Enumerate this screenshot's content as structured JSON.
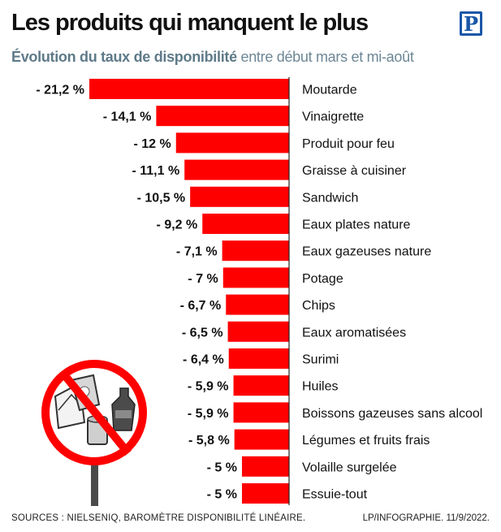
{
  "header": {
    "title": "Les produits qui manquent le plus",
    "subtitle_bold": "Évolution du taux de disponibilité",
    "subtitle_rest": " entre début mars et mi-août",
    "logo_letter": "P"
  },
  "footer": {
    "sources": "SOURCES : NIELSENIQ, BAROMÈTRE DISPONIBILITÉ LINÉAIRE.",
    "credit": "LP/INFOGRAPHIE.  11/9/2022."
  },
  "colors": {
    "bar": "#ff0000",
    "subtitle": "#6d8796",
    "logo": "#1a56a8"
  },
  "icons": [
    "prohibition-sign-icon",
    "bag-icon",
    "can-icon",
    "bottle-icon",
    "tissue-icon"
  ],
  "chart_data": {
    "type": "bar",
    "orientation": "horizontal",
    "title": "Les produits qui manquent le plus",
    "subtitle": "Évolution du taux de disponibilité entre début mars et mi-août",
    "unit": "%",
    "categories": [
      "Moutarde",
      "Vinaigrette",
      "Produit pour feu",
      "Graisse à cuisiner",
      "Sandwich",
      "Eaux plates nature",
      "Eaux gazeuses nature",
      "Potage",
      "Chips",
      "Eaux aromatisées",
      "Surimi",
      "Huiles",
      "Boissons gazeuses sans alcool",
      "Légumes et fruits frais",
      "Volaille surgelée",
      "Essuie-tout"
    ],
    "values": [
      -21.2,
      -14.1,
      -12,
      -11.1,
      -10.5,
      -9.2,
      -7.1,
      -7,
      -6.7,
      -6.5,
      -6.4,
      -5.9,
      -5.9,
      -5.8,
      -5,
      -5
    ],
    "labels": [
      "- 21,2 %",
      "- 14,1 %",
      "- 12 %",
      "- 11,1 %",
      "- 10,5 %",
      "- 9,2 %",
      "- 7,1 %",
      "- 7 %",
      "- 6,7 %",
      "- 6,5 %",
      "- 6,4 %",
      "- 5,9 %",
      "- 5,9 %",
      "- 5,8 %",
      "- 5 %",
      "- 5 %"
    ],
    "xlim": [
      -21.2,
      0
    ],
    "grid": false,
    "legend": "none"
  }
}
